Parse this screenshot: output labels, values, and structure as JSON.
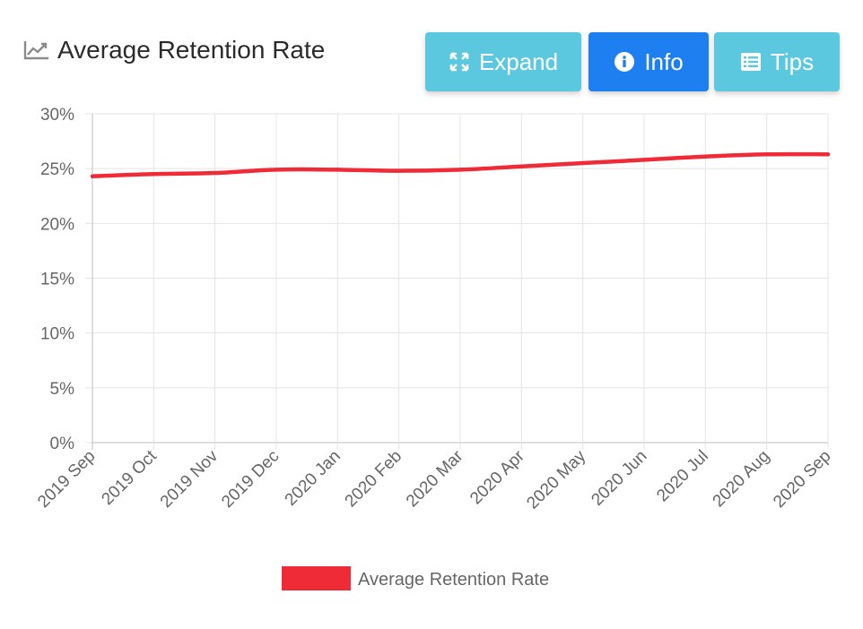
{
  "header": {
    "title": "Average Retention Rate",
    "title_icon": "line-chart-icon"
  },
  "toolbar": {
    "expand_label": "Expand",
    "expand_icon": "expand-arrows-icon",
    "info_label": "Info",
    "info_icon": "info-circle-icon",
    "tips_label": "Tips",
    "tips_icon": "list-icon"
  },
  "colors": {
    "line": "#ef2b37",
    "button_light": "#5bc8e0",
    "button_primary": "#1e7ff0",
    "grid": "#e4e4e4"
  },
  "chart_data": {
    "type": "line",
    "title": "Average Retention Rate",
    "xlabel": "",
    "ylabel": "",
    "categories": [
      "2019 Sep",
      "2019 Oct",
      "2019 Nov",
      "2019 Dec",
      "2020 Jan",
      "2020 Feb",
      "2020 Mar",
      "2020 Apr",
      "2020 May",
      "2020 Jun",
      "2020 Jul",
      "2020 Aug",
      "2020 Sep"
    ],
    "series": [
      {
        "name": "Average Retention Rate",
        "values": [
          24.3,
          24.5,
          24.6,
          24.9,
          24.9,
          24.8,
          24.9,
          25.2,
          25.5,
          25.8,
          26.1,
          26.3,
          26.3
        ]
      }
    ],
    "ylim": [
      0,
      30
    ],
    "yticks": [
      "0%",
      "5%",
      "10%",
      "15%",
      "20%",
      "25%",
      "30%"
    ],
    "grid": true,
    "legend_position": "bottom-center"
  }
}
